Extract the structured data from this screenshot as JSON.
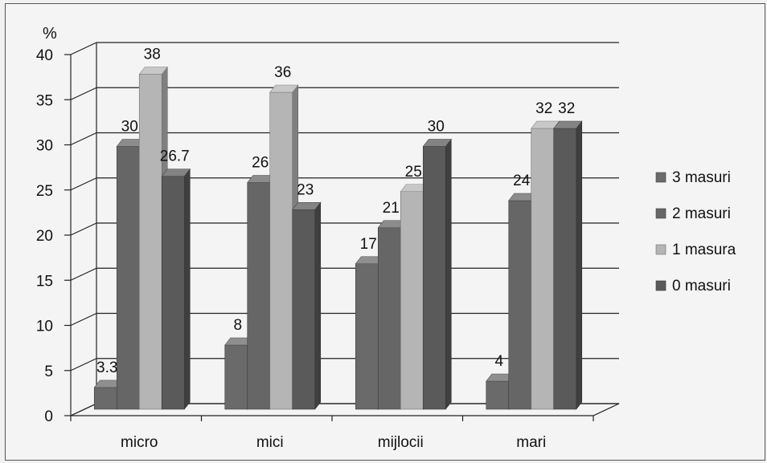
{
  "chart_data": {
    "type": "bar",
    "ylabel": "%",
    "ylim": [
      0,
      40
    ],
    "yticks": [
      "0",
      "5",
      "10",
      "15",
      "20",
      "25",
      "30",
      "35",
      "40"
    ],
    "categories": [
      "micro",
      "mici",
      "mijlocii",
      "mari"
    ],
    "series": [
      {
        "name": "3 masuri",
        "values": [
          3.3,
          8,
          17,
          4
        ],
        "labels": [
          "3.3",
          "8",
          "17",
          "4"
        ],
        "color": "#6a6a6a"
      },
      {
        "name": "2 masuri",
        "values": [
          30,
          26,
          21,
          24
        ],
        "labels": [
          "30",
          "26",
          "21",
          "24"
        ],
        "color": "#666666"
      },
      {
        "name": "1 masura",
        "values": [
          38,
          36,
          25,
          32
        ],
        "labels": [
          "38",
          "36",
          "25",
          "32"
        ],
        "color": "#b5b5b5"
      },
      {
        "name": "0 masuri",
        "values": [
          26.7,
          23,
          30,
          32
        ],
        "labels": [
          "26.7",
          "23",
          "30",
          "32"
        ],
        "color": "#5a5a5a"
      }
    ],
    "grid": true,
    "legend_position": "right",
    "style": "3d-clustered"
  }
}
